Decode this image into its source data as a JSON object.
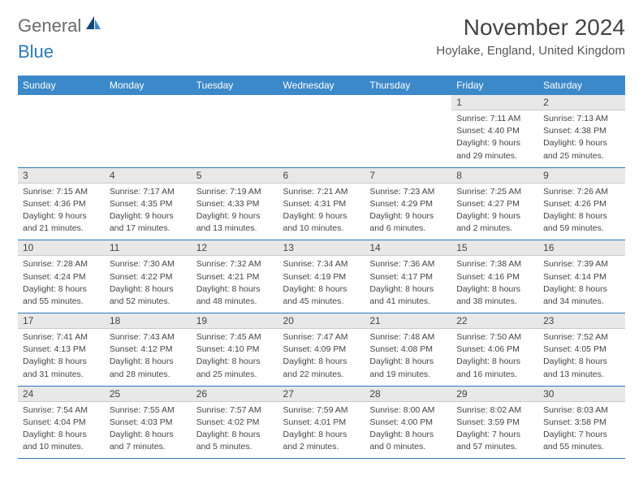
{
  "brand": {
    "general": "General",
    "blue": "Blue"
  },
  "title": "November 2024",
  "location": "Hoylake, England, United Kingdom",
  "colors": {
    "header_bg": "#3b89c9",
    "border": "#2a79bd",
    "daynum_bg": "#e8e8e8"
  },
  "day_headers": [
    "Sunday",
    "Monday",
    "Tuesday",
    "Wednesday",
    "Thursday",
    "Friday",
    "Saturday"
  ],
  "weeks": [
    [
      null,
      null,
      null,
      null,
      null,
      {
        "n": "1",
        "sunrise": "Sunrise: 7:11 AM",
        "sunset": "Sunset: 4:40 PM",
        "daylight1": "Daylight: 9 hours",
        "daylight2": "and 29 minutes."
      },
      {
        "n": "2",
        "sunrise": "Sunrise: 7:13 AM",
        "sunset": "Sunset: 4:38 PM",
        "daylight1": "Daylight: 9 hours",
        "daylight2": "and 25 minutes."
      }
    ],
    [
      {
        "n": "3",
        "sunrise": "Sunrise: 7:15 AM",
        "sunset": "Sunset: 4:36 PM",
        "daylight1": "Daylight: 9 hours",
        "daylight2": "and 21 minutes."
      },
      {
        "n": "4",
        "sunrise": "Sunrise: 7:17 AM",
        "sunset": "Sunset: 4:35 PM",
        "daylight1": "Daylight: 9 hours",
        "daylight2": "and 17 minutes."
      },
      {
        "n": "5",
        "sunrise": "Sunrise: 7:19 AM",
        "sunset": "Sunset: 4:33 PM",
        "daylight1": "Daylight: 9 hours",
        "daylight2": "and 13 minutes."
      },
      {
        "n": "6",
        "sunrise": "Sunrise: 7:21 AM",
        "sunset": "Sunset: 4:31 PM",
        "daylight1": "Daylight: 9 hours",
        "daylight2": "and 10 minutes."
      },
      {
        "n": "7",
        "sunrise": "Sunrise: 7:23 AM",
        "sunset": "Sunset: 4:29 PM",
        "daylight1": "Daylight: 9 hours",
        "daylight2": "and 6 minutes."
      },
      {
        "n": "8",
        "sunrise": "Sunrise: 7:25 AM",
        "sunset": "Sunset: 4:27 PM",
        "daylight1": "Daylight: 9 hours",
        "daylight2": "and 2 minutes."
      },
      {
        "n": "9",
        "sunrise": "Sunrise: 7:26 AM",
        "sunset": "Sunset: 4:26 PM",
        "daylight1": "Daylight: 8 hours",
        "daylight2": "and 59 minutes."
      }
    ],
    [
      {
        "n": "10",
        "sunrise": "Sunrise: 7:28 AM",
        "sunset": "Sunset: 4:24 PM",
        "daylight1": "Daylight: 8 hours",
        "daylight2": "and 55 minutes."
      },
      {
        "n": "11",
        "sunrise": "Sunrise: 7:30 AM",
        "sunset": "Sunset: 4:22 PM",
        "daylight1": "Daylight: 8 hours",
        "daylight2": "and 52 minutes."
      },
      {
        "n": "12",
        "sunrise": "Sunrise: 7:32 AM",
        "sunset": "Sunset: 4:21 PM",
        "daylight1": "Daylight: 8 hours",
        "daylight2": "and 48 minutes."
      },
      {
        "n": "13",
        "sunrise": "Sunrise: 7:34 AM",
        "sunset": "Sunset: 4:19 PM",
        "daylight1": "Daylight: 8 hours",
        "daylight2": "and 45 minutes."
      },
      {
        "n": "14",
        "sunrise": "Sunrise: 7:36 AM",
        "sunset": "Sunset: 4:17 PM",
        "daylight1": "Daylight: 8 hours",
        "daylight2": "and 41 minutes."
      },
      {
        "n": "15",
        "sunrise": "Sunrise: 7:38 AM",
        "sunset": "Sunset: 4:16 PM",
        "daylight1": "Daylight: 8 hours",
        "daylight2": "and 38 minutes."
      },
      {
        "n": "16",
        "sunrise": "Sunrise: 7:39 AM",
        "sunset": "Sunset: 4:14 PM",
        "daylight1": "Daylight: 8 hours",
        "daylight2": "and 34 minutes."
      }
    ],
    [
      {
        "n": "17",
        "sunrise": "Sunrise: 7:41 AM",
        "sunset": "Sunset: 4:13 PM",
        "daylight1": "Daylight: 8 hours",
        "daylight2": "and 31 minutes."
      },
      {
        "n": "18",
        "sunrise": "Sunrise: 7:43 AM",
        "sunset": "Sunset: 4:12 PM",
        "daylight1": "Daylight: 8 hours",
        "daylight2": "and 28 minutes."
      },
      {
        "n": "19",
        "sunrise": "Sunrise: 7:45 AM",
        "sunset": "Sunset: 4:10 PM",
        "daylight1": "Daylight: 8 hours",
        "daylight2": "and 25 minutes."
      },
      {
        "n": "20",
        "sunrise": "Sunrise: 7:47 AM",
        "sunset": "Sunset: 4:09 PM",
        "daylight1": "Daylight: 8 hours",
        "daylight2": "and 22 minutes."
      },
      {
        "n": "21",
        "sunrise": "Sunrise: 7:48 AM",
        "sunset": "Sunset: 4:08 PM",
        "daylight1": "Daylight: 8 hours",
        "daylight2": "and 19 minutes."
      },
      {
        "n": "22",
        "sunrise": "Sunrise: 7:50 AM",
        "sunset": "Sunset: 4:06 PM",
        "daylight1": "Daylight: 8 hours",
        "daylight2": "and 16 minutes."
      },
      {
        "n": "23",
        "sunrise": "Sunrise: 7:52 AM",
        "sunset": "Sunset: 4:05 PM",
        "daylight1": "Daylight: 8 hours",
        "daylight2": "and 13 minutes."
      }
    ],
    [
      {
        "n": "24",
        "sunrise": "Sunrise: 7:54 AM",
        "sunset": "Sunset: 4:04 PM",
        "daylight1": "Daylight: 8 hours",
        "daylight2": "and 10 minutes."
      },
      {
        "n": "25",
        "sunrise": "Sunrise: 7:55 AM",
        "sunset": "Sunset: 4:03 PM",
        "daylight1": "Daylight: 8 hours",
        "daylight2": "and 7 minutes."
      },
      {
        "n": "26",
        "sunrise": "Sunrise: 7:57 AM",
        "sunset": "Sunset: 4:02 PM",
        "daylight1": "Daylight: 8 hours",
        "daylight2": "and 5 minutes."
      },
      {
        "n": "27",
        "sunrise": "Sunrise: 7:59 AM",
        "sunset": "Sunset: 4:01 PM",
        "daylight1": "Daylight: 8 hours",
        "daylight2": "and 2 minutes."
      },
      {
        "n": "28",
        "sunrise": "Sunrise: 8:00 AM",
        "sunset": "Sunset: 4:00 PM",
        "daylight1": "Daylight: 8 hours",
        "daylight2": "and 0 minutes."
      },
      {
        "n": "29",
        "sunrise": "Sunrise: 8:02 AM",
        "sunset": "Sunset: 3:59 PM",
        "daylight1": "Daylight: 7 hours",
        "daylight2": "and 57 minutes."
      },
      {
        "n": "30",
        "sunrise": "Sunrise: 8:03 AM",
        "sunset": "Sunset: 3:58 PM",
        "daylight1": "Daylight: 7 hours",
        "daylight2": "and 55 minutes."
      }
    ]
  ]
}
